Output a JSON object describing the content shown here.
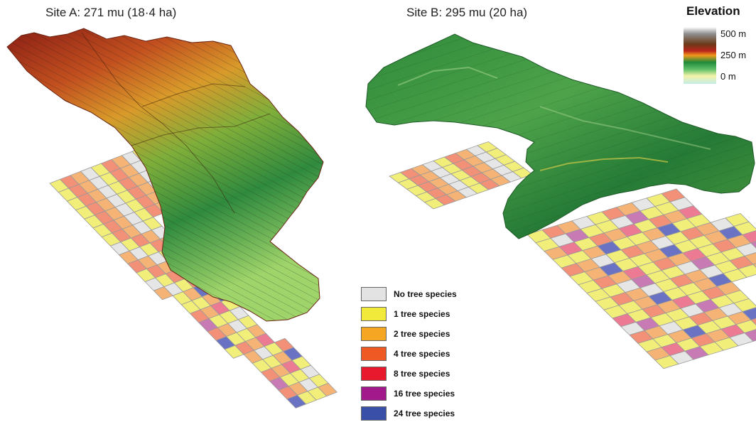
{
  "site_a": {
    "title": "Site A: 271 mu (18·4 ha)"
  },
  "site_b": {
    "title": "Site B: 295 mu (20 ha)"
  },
  "elevation_legend": {
    "title": "Elevation",
    "labels": [
      "500 m",
      "250 m",
      "0 m"
    ]
  },
  "species_legend": [
    {
      "label": "No tree species",
      "color": "#e3e3e3"
    },
    {
      "label": "1 tree species",
      "color": "#f2ea3a"
    },
    {
      "label": "2 tree species",
      "color": "#f5a623"
    },
    {
      "label": "4 tree species",
      "color": "#ef5a24"
    },
    {
      "label": "8 tree species",
      "color": "#e8192c"
    },
    {
      "label": "16 tree species",
      "color": "#a2198c"
    },
    {
      "label": "24 tree species",
      "color": "#3a4fa8"
    }
  ],
  "grid_fill_colors": {
    "none": "#e6e6e6",
    "one": "#f2ee7a",
    "two": "#f5b476",
    "four": "#f29078",
    "eight": "#ec7a92",
    "sixteen": "#c77ab4",
    "twentyfour": "#6a72c4"
  }
}
